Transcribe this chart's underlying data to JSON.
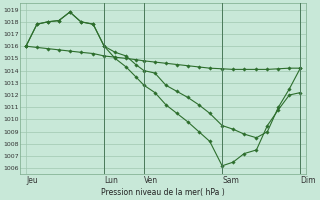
{
  "bg_color": "#c8e8d8",
  "grid_color": "#a0c8b0",
  "line_color": "#2d6e2d",
  "ylabel_text": "Pression niveau de la mer( hPa )",
  "ylim": [
    1005.5,
    1019.5
  ],
  "yticks": [
    1006,
    1007,
    1008,
    1009,
    1010,
    1011,
    1012,
    1013,
    1014,
    1015,
    1016,
    1017,
    1018,
    1019
  ],
  "xtick_labels": [
    "Jeu",
    "Lun",
    "Ven",
    "Sam",
    "Dim"
  ],
  "xtick_positions": [
    0.0,
    0.285,
    0.43,
    0.715,
    1.0
  ],
  "vline_positions": [
    0.285,
    0.43,
    0.715,
    1.0
  ],
  "line1_x": [
    0.0,
    0.04,
    0.08,
    0.12,
    0.16,
    0.2,
    0.245,
    0.285,
    0.325,
    0.365,
    0.4,
    0.43,
    0.47,
    0.51,
    0.55,
    0.59,
    0.63,
    0.67,
    0.715,
    0.755,
    0.795,
    0.84,
    0.88,
    0.92,
    0.96,
    1.0
  ],
  "line1_y": [
    1016.0,
    1015.9,
    1015.8,
    1015.7,
    1015.6,
    1015.5,
    1015.4,
    1015.2,
    1015.1,
    1015.0,
    1014.9,
    1014.8,
    1014.7,
    1014.6,
    1014.5,
    1014.4,
    1014.3,
    1014.2,
    1014.15,
    1014.1,
    1014.1,
    1014.1,
    1014.1,
    1014.15,
    1014.2,
    1014.2
  ],
  "line2_x": [
    0.0,
    0.04,
    0.08,
    0.12,
    0.16,
    0.2,
    0.245,
    0.285,
    0.325,
    0.365,
    0.4,
    0.43,
    0.47,
    0.51,
    0.55,
    0.59,
    0.63,
    0.67,
    0.715,
    0.755,
    0.795,
    0.84,
    0.88,
    0.92,
    0.96,
    1.0
  ],
  "line2_y": [
    1016.0,
    1017.8,
    1018.0,
    1018.1,
    1018.8,
    1018.0,
    1017.8,
    1016.0,
    1015.5,
    1015.2,
    1014.5,
    1014.0,
    1013.8,
    1012.8,
    1012.3,
    1011.8,
    1011.2,
    1010.5,
    1009.5,
    1009.2,
    1008.8,
    1008.5,
    1009.0,
    1011.0,
    1012.5,
    1014.2
  ],
  "line3_x": [
    0.0,
    0.04,
    0.08,
    0.12,
    0.16,
    0.2,
    0.245,
    0.285,
    0.325,
    0.365,
    0.4,
    0.43,
    0.47,
    0.51,
    0.55,
    0.59,
    0.63,
    0.67,
    0.715,
    0.755,
    0.795,
    0.84,
    0.88,
    0.92,
    0.96,
    1.0
  ],
  "line3_y": [
    1016.0,
    1017.8,
    1018.0,
    1018.1,
    1018.8,
    1018.0,
    1017.8,
    1016.0,
    1015.0,
    1014.3,
    1013.5,
    1012.8,
    1012.2,
    1011.2,
    1010.5,
    1009.8,
    1009.0,
    1008.2,
    1006.2,
    1006.5,
    1007.2,
    1007.5,
    1009.5,
    1010.8,
    1012.0,
    1012.2
  ],
  "figsize": [
    3.2,
    2.0
  ],
  "dpi": 100
}
